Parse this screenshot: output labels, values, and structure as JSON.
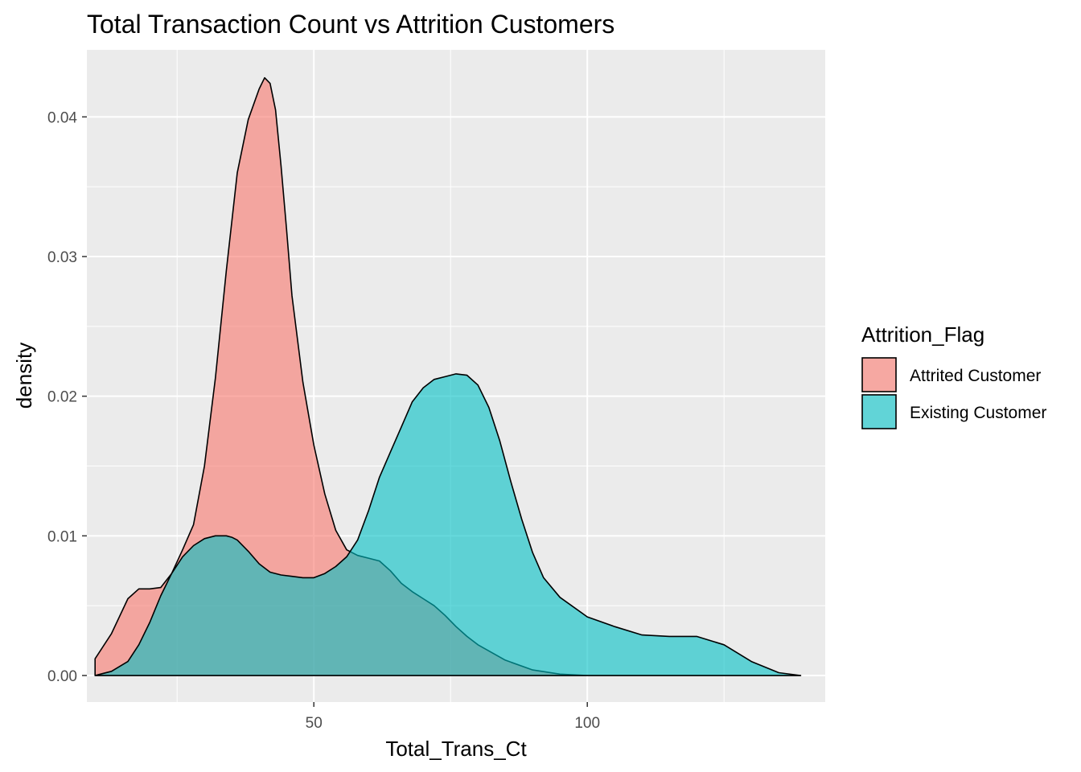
{
  "chart_data": {
    "type": "area",
    "title": "Total Transaction Count vs Attrition Customers",
    "xlabel": "Total_Trans_Ct",
    "ylabel": "density",
    "xlim": [
      8.5,
      143.5
    ],
    "ylim": [
      -0.0019,
      0.0448
    ],
    "x_ticks": [
      50,
      100
    ],
    "x_tick_labels": [
      "50",
      "100"
    ],
    "y_ticks": [
      0.0,
      0.01,
      0.02,
      0.03,
      0.04
    ],
    "y_tick_labels": [
      "0.00",
      "0.01",
      "0.02",
      "0.03",
      "0.04"
    ],
    "grid": true,
    "legend": {
      "title": "Attrition_Flag",
      "position": "right"
    },
    "series": [
      {
        "name": "Attrited Customer",
        "color": "#F8766D",
        "fill_opacity": 0.6,
        "x": [
          10,
          13,
          16,
          18,
          20,
          22,
          24,
          26,
          28,
          30,
          32,
          34,
          36,
          38,
          40,
          41,
          42,
          43,
          44,
          45,
          46,
          48,
          50,
          52,
          54,
          56,
          58,
          60,
          62,
          64,
          66,
          68,
          70,
          72,
          74,
          76,
          78,
          80,
          85,
          90,
          95,
          100,
          105,
          110,
          115,
          120,
          130,
          139
        ],
        "values": [
          0.0012,
          0.003,
          0.0055,
          0.0062,
          0.0062,
          0.0063,
          0.0073,
          0.009,
          0.0108,
          0.015,
          0.0213,
          0.029,
          0.036,
          0.0398,
          0.042,
          0.0428,
          0.0424,
          0.0405,
          0.0365,
          0.032,
          0.0272,
          0.021,
          0.0165,
          0.013,
          0.0104,
          0.009,
          0.0086,
          0.0084,
          0.0082,
          0.0075,
          0.0066,
          0.006,
          0.0055,
          0.005,
          0.0043,
          0.0035,
          0.0028,
          0.0022,
          0.0011,
          0.0004,
          0.0001,
          0.0,
          0.0,
          0.0,
          0.0,
          0.0,
          0.0,
          0.0
        ]
      },
      {
        "name": "Existing Customer",
        "color": "#00BFC4",
        "fill_opacity": 0.6,
        "x": [
          10,
          13,
          16,
          18,
          20,
          22,
          24,
          26,
          28,
          30,
          32,
          34,
          35,
          36,
          38,
          40,
          42,
          44,
          46,
          48,
          50,
          52,
          54,
          56,
          58,
          60,
          62,
          64,
          66,
          68,
          70,
          72,
          74,
          76,
          78,
          80,
          82,
          84,
          86,
          88,
          90,
          92,
          95,
          100,
          105,
          110,
          115,
          120,
          125,
          130,
          135,
          139
        ],
        "values": [
          0.0,
          0.0003,
          0.001,
          0.0022,
          0.0038,
          0.0057,
          0.0073,
          0.0085,
          0.0093,
          0.0098,
          0.01,
          0.01,
          0.0099,
          0.0097,
          0.0089,
          0.008,
          0.0074,
          0.0072,
          0.0071,
          0.007,
          0.007,
          0.0073,
          0.0078,
          0.0085,
          0.0097,
          0.0118,
          0.0142,
          0.016,
          0.0178,
          0.0196,
          0.0206,
          0.0212,
          0.0214,
          0.0216,
          0.0215,
          0.0208,
          0.0192,
          0.0168,
          0.0139,
          0.0112,
          0.0088,
          0.007,
          0.0056,
          0.0042,
          0.0035,
          0.0029,
          0.0028,
          0.0028,
          0.0022,
          0.001,
          0.0002,
          0.0
        ]
      }
    ]
  }
}
